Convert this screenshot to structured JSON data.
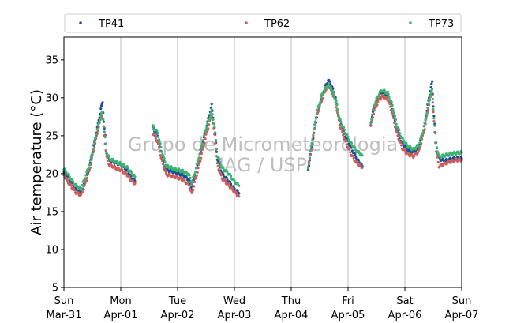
{
  "chart_data": {
    "type": "scatter",
    "title": "",
    "ylabel": "Air temperature (°C)",
    "xlabel": "",
    "ylim": [
      5,
      38
    ],
    "xlim": [
      0,
      7
    ],
    "yticks": [
      5,
      10,
      15,
      20,
      25,
      30,
      35
    ],
    "xtick_days": [
      "Sun",
      "Mon",
      "Tue",
      "Wed",
      "Thu",
      "Fri",
      "Sat",
      "Sun"
    ],
    "xtick_dates": [
      "Mar-31",
      "Apr-01",
      "Apr-02",
      "Apr-03",
      "Apr-04",
      "Apr-05",
      "Apr-06",
      "Apr-07"
    ],
    "grid": "vertical",
    "legend_position": "top",
    "watermark": [
      "Grupo de Micrometeorologia",
      "IAG / USP"
    ],
    "x_unit": "days since Sun Mar-31",
    "series": [
      {
        "name": "TP41",
        "color": "#1f4e96",
        "segments": [
          [
            [
              0,
              20.2
            ],
            [
              0.1,
              19.2
            ],
            [
              0.2,
              18.0
            ],
            [
              0.3,
              17.5
            ],
            [
              0.35,
              18.5
            ],
            [
              0.45,
              20.8
            ],
            [
              0.55,
              24.5
            ],
            [
              0.6,
              26.5
            ],
            [
              0.65,
              28.5
            ],
            [
              0.68,
              29.4
            ],
            [
              0.7,
              27.0
            ],
            [
              0.75,
              22.8
            ],
            [
              0.8,
              21.8
            ],
            [
              0.9,
              21.5
            ],
            [
              1.0,
              21.2
            ],
            [
              1.1,
              20.6
            ],
            [
              1.2,
              19.4
            ],
            [
              1.25,
              19.0
            ]
          ],
          [
            [
              1.57,
              26.0
            ],
            [
              1.65,
              25.0
            ],
            [
              1.72,
              22.5
            ],
            [
              1.8,
              20.5
            ],
            [
              1.95,
              20.2
            ],
            [
              2.1,
              19.8
            ],
            [
              2.2,
              19.2
            ],
            [
              2.25,
              18.0
            ],
            [
              2.3,
              19.5
            ],
            [
              2.4,
              22.5
            ],
            [
              2.5,
              26.0
            ],
            [
              2.55,
              27.5
            ],
            [
              2.6,
              29.0
            ],
            [
              2.65,
              26.0
            ],
            [
              2.7,
              22.0
            ],
            [
              2.78,
              20.0
            ],
            [
              2.9,
              19.0
            ],
            [
              3.0,
              18.0
            ],
            [
              3.08,
              17.4
            ]
          ],
          [
            [
              4.3,
              20.6
            ],
            [
              4.35,
              23.0
            ],
            [
              4.45,
              27.5
            ],
            [
              4.55,
              30.5
            ],
            [
              4.6,
              31.5
            ],
            [
              4.65,
              32.3
            ],
            [
              4.7,
              31.8
            ],
            [
              4.78,
              30.0
            ],
            [
              4.85,
              27.0
            ],
            [
              4.95,
              25.0
            ],
            [
              5.05,
              23.5
            ],
            [
              5.15,
              22.0
            ],
            [
              5.25,
              21.0
            ]
          ],
          [
            [
              5.4,
              26.5
            ],
            [
              5.45,
              28.5
            ],
            [
              5.5,
              29.5
            ],
            [
              5.55,
              30.3
            ],
            [
              5.6,
              30.8
            ],
            [
              5.7,
              30.3
            ],
            [
              5.78,
              28.5
            ],
            [
              5.85,
              26.0
            ],
            [
              5.95,
              24.0
            ],
            [
              6.05,
              23.2
            ],
            [
              6.15,
              22.8
            ],
            [
              6.25,
              23.5
            ],
            [
              6.35,
              26.5
            ],
            [
              6.4,
              29.0
            ],
            [
              6.45,
              31.0
            ],
            [
              6.48,
              32.0
            ],
            [
              6.5,
              29.0
            ],
            [
              6.55,
              24.0
            ],
            [
              6.6,
              22.0
            ],
            [
              6.7,
              21.7
            ],
            [
              6.8,
              21.9
            ],
            [
              6.9,
              22.0
            ],
            [
              7.0,
              22.0
            ]
          ]
        ]
      },
      {
        "name": "TP62",
        "color": "#cd5c5c",
        "segments": [
          [
            [
              0,
              19.8
            ],
            [
              0.1,
              18.6
            ],
            [
              0.2,
              17.6
            ],
            [
              0.3,
              17.1
            ],
            [
              0.35,
              18.0
            ],
            [
              0.45,
              20.5
            ],
            [
              0.55,
              24.0
            ],
            [
              0.6,
              25.8
            ],
            [
              0.65,
              27.3
            ],
            [
              0.68,
              28.0
            ],
            [
              0.7,
              26.0
            ],
            [
              0.75,
              22.2
            ],
            [
              0.8,
              21.2
            ],
            [
              0.9,
              20.8
            ],
            [
              1.0,
              20.5
            ],
            [
              1.1,
              20.0
            ],
            [
              1.2,
              19.0
            ],
            [
              1.25,
              18.7
            ]
          ],
          [
            [
              1.57,
              25.3
            ],
            [
              1.65,
              24.2
            ],
            [
              1.72,
              21.8
            ],
            [
              1.8,
              19.9
            ],
            [
              1.95,
              19.6
            ],
            [
              2.1,
              19.2
            ],
            [
              2.2,
              18.5
            ],
            [
              2.25,
              17.3
            ],
            [
              2.3,
              18.8
            ],
            [
              2.4,
              21.8
            ],
            [
              2.5,
              25.0
            ],
            [
              2.55,
              26.5
            ],
            [
              2.6,
              27.8
            ],
            [
              2.65,
              25.2
            ],
            [
              2.7,
              21.2
            ],
            [
              2.78,
              19.4
            ],
            [
              2.9,
              18.5
            ],
            [
              3.0,
              17.6
            ],
            [
              3.08,
              17.0
            ]
          ],
          [
            [
              4.3,
              20.8
            ],
            [
              4.35,
              23.2
            ],
            [
              4.45,
              27.8
            ],
            [
              4.55,
              30.0
            ],
            [
              4.6,
              31.0
            ],
            [
              4.65,
              31.6
            ],
            [
              4.7,
              31.2
            ],
            [
              4.78,
              29.4
            ],
            [
              4.85,
              26.5
            ],
            [
              4.95,
              24.3
            ],
            [
              5.05,
              22.6
            ],
            [
              5.15,
              21.4
            ],
            [
              5.25,
              20.8
            ]
          ],
          [
            [
              5.4,
              26.2
            ],
            [
              5.45,
              28.0
            ],
            [
              5.5,
              29.0
            ],
            [
              5.55,
              29.8
            ],
            [
              5.6,
              30.2
            ],
            [
              5.7,
              29.8
            ],
            [
              5.78,
              28.0
            ],
            [
              5.85,
              25.5
            ],
            [
              5.95,
              23.4
            ],
            [
              6.05,
              22.6
            ],
            [
              6.15,
              22.3
            ],
            [
              6.25,
              23.0
            ],
            [
              6.35,
              26.0
            ],
            [
              6.4,
              28.2
            ],
            [
              6.45,
              30.0
            ],
            [
              6.48,
              30.8
            ],
            [
              6.5,
              28.0
            ],
            [
              6.55,
              23.0
            ],
            [
              6.6,
              21.0
            ],
            [
              6.7,
              21.3
            ],
            [
              6.8,
              21.6
            ],
            [
              6.9,
              21.8
            ],
            [
              7.0,
              21.8
            ]
          ]
        ]
      },
      {
        "name": "TP73",
        "color": "#3cb371",
        "segments": [
          [
            [
              0,
              20.6
            ],
            [
              0.1,
              19.6
            ],
            [
              0.2,
              18.5
            ],
            [
              0.3,
              18.0
            ],
            [
              0.35,
              19.0
            ],
            [
              0.45,
              21.2
            ],
            [
              0.55,
              24.6
            ],
            [
              0.6,
              26.2
            ],
            [
              0.65,
              27.6
            ],
            [
              0.68,
              28.2
            ],
            [
              0.7,
              26.4
            ],
            [
              0.75,
              22.9
            ],
            [
              0.8,
              22.0
            ],
            [
              0.9,
              21.6
            ],
            [
              1.0,
              21.3
            ],
            [
              1.1,
              20.9
            ],
            [
              1.2,
              20.0
            ],
            [
              1.25,
              19.6
            ]
          ],
          [
            [
              1.57,
              26.2
            ],
            [
              1.65,
              25.4
            ],
            [
              1.72,
              23.0
            ],
            [
              1.8,
              21.0
            ],
            [
              1.95,
              20.6
            ],
            [
              2.1,
              20.3
            ],
            [
              2.2,
              19.9
            ],
            [
              2.25,
              18.8
            ],
            [
              2.3,
              20.0
            ],
            [
              2.4,
              23.0
            ],
            [
              2.5,
              26.0
            ],
            [
              2.55,
              27.0
            ],
            [
              2.6,
              28.3
            ],
            [
              2.65,
              26.2
            ],
            [
              2.7,
              22.4
            ],
            [
              2.78,
              20.8
            ],
            [
              2.9,
              20.0
            ],
            [
              3.0,
              19.0
            ],
            [
              3.08,
              18.4
            ]
          ],
          [
            [
              4.3,
              20.8
            ],
            [
              4.35,
              23.5
            ],
            [
              4.45,
              28.0
            ],
            [
              4.55,
              30.6
            ],
            [
              4.6,
              31.2
            ],
            [
              4.65,
              31.6
            ],
            [
              4.7,
              31.2
            ],
            [
              4.78,
              29.8
            ],
            [
              4.85,
              27.2
            ],
            [
              4.95,
              25.5
            ],
            [
              5.05,
              24.0
            ],
            [
              5.15,
              23.0
            ],
            [
              5.25,
              22.4
            ]
          ],
          [
            [
              5.4,
              26.8
            ],
            [
              5.45,
              28.8
            ],
            [
              5.5,
              29.8
            ],
            [
              5.55,
              30.6
            ],
            [
              5.6,
              31.0
            ],
            [
              5.7,
              30.6
            ],
            [
              5.78,
              29.0
            ],
            [
              5.85,
              26.6
            ],
            [
              5.95,
              24.6
            ],
            [
              6.05,
              23.6
            ],
            [
              6.15,
              23.2
            ],
            [
              6.25,
              23.8
            ],
            [
              6.35,
              26.5
            ],
            [
              6.4,
              28.6
            ],
            [
              6.45,
              30.4
            ],
            [
              6.48,
              31.0
            ],
            [
              6.5,
              28.6
            ],
            [
              6.55,
              24.0
            ],
            [
              6.6,
              22.2
            ],
            [
              6.7,
              22.4
            ],
            [
              6.8,
              22.6
            ],
            [
              6.9,
              22.7
            ],
            [
              7.0,
              22.8
            ]
          ]
        ]
      }
    ]
  }
}
